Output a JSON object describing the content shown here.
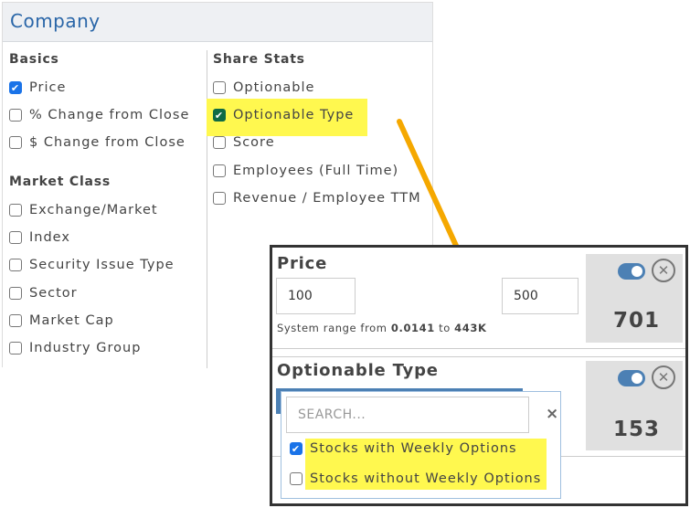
{
  "panel": {
    "title": "Company",
    "basics": {
      "heading": "Basics",
      "items": [
        {
          "label": "Price",
          "checked": true
        },
        {
          "label": "% Change from Close",
          "checked": false
        },
        {
          "label": "$ Change from Close",
          "checked": false
        }
      ]
    },
    "market_class": {
      "heading": "Market Class",
      "items": [
        {
          "label": "Exchange/Market",
          "checked": false
        },
        {
          "label": "Index",
          "checked": false
        },
        {
          "label": "Security Issue Type",
          "checked": false
        },
        {
          "label": "Sector",
          "checked": false
        },
        {
          "label": "Market Cap",
          "checked": false
        },
        {
          "label": "Industry Group",
          "checked": false
        }
      ]
    },
    "share_stats": {
      "heading": "Share Stats",
      "items": [
        {
          "label": "Optionable",
          "checked": false
        },
        {
          "label": "Optionable Type",
          "checked": true
        },
        {
          "label": "Score",
          "checked": false
        },
        {
          "label": "Employees (Full Time)",
          "checked": false
        },
        {
          "label": "Revenue / Employee TTM",
          "checked": false
        }
      ]
    }
  },
  "filters": {
    "price": {
      "title": "Price",
      "min": "100",
      "max": "500",
      "range_prefix": "System range from",
      "range_min": "0.0141",
      "range_to": "to",
      "range_max": "443K",
      "count": "701",
      "enabled": true
    },
    "optionable_type": {
      "title": "Optionable Type",
      "count": "153",
      "enabled": true,
      "dropdown": {
        "search_placeholder": "SEARCH...",
        "clear": "×",
        "options": [
          {
            "label": "Stocks with Weekly Options",
            "checked": true
          },
          {
            "label": "Stocks without Weekly Options",
            "checked": false
          }
        ]
      }
    }
  },
  "colors": {
    "accent": "#1a73e8",
    "highlight": "#fff84f",
    "arrow": "#f5a800",
    "toggle": "#4c80b4"
  }
}
